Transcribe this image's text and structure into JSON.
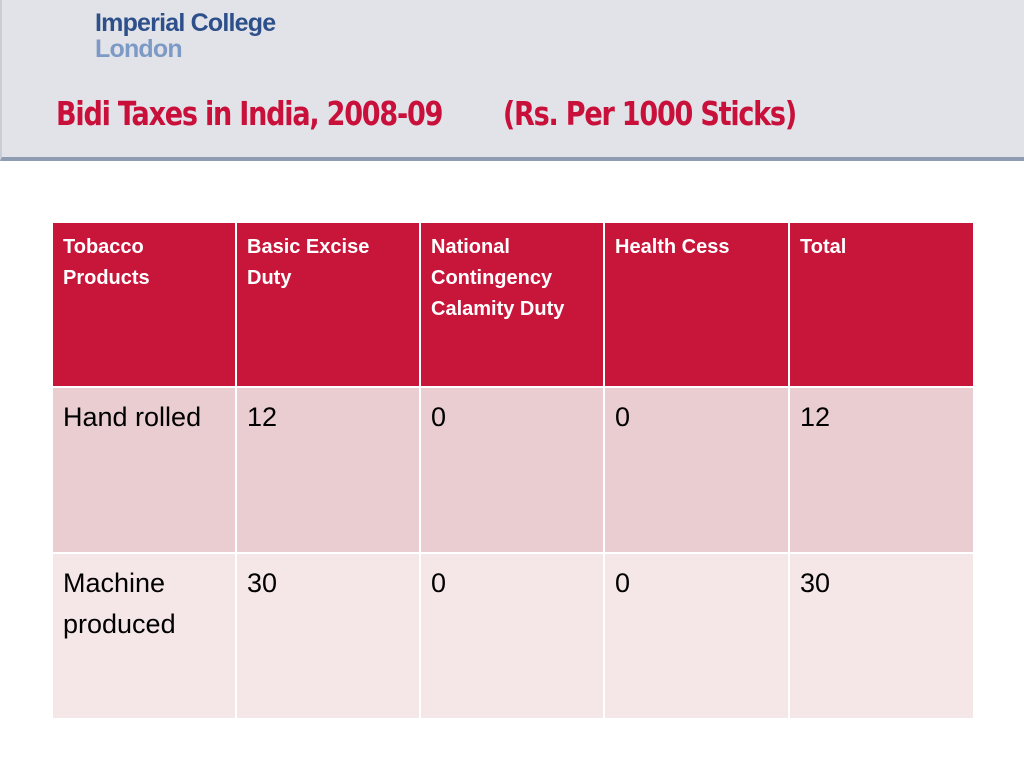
{
  "header": {
    "logo": {
      "line1": "Imperial College",
      "line2": "London"
    },
    "title": "Bidi Taxes in India, 2008-09",
    "subtitle": "(Rs. Per 1000 Sticks)"
  },
  "table": {
    "headers": [
      "Tobacco Products",
      "Basic Excise Duty",
      "National Contingency Calamity Duty",
      "Health Cess",
      "Total"
    ],
    "rows": [
      [
        "Hand rolled",
        "12",
        "0",
        "0",
        "12"
      ],
      [
        "Machine produced",
        "30",
        "0",
        "0",
        "30"
      ]
    ]
  },
  "colors": {
    "title_red": "#c8103a",
    "header_red": "#c8153a",
    "row_odd": "#e9cdd1",
    "row_even": "#f5e6e8",
    "band_grey": "#e1e3e8",
    "logo_dark_blue": "#2d4f8a",
    "logo_light_blue": "#7d9ac6"
  }
}
